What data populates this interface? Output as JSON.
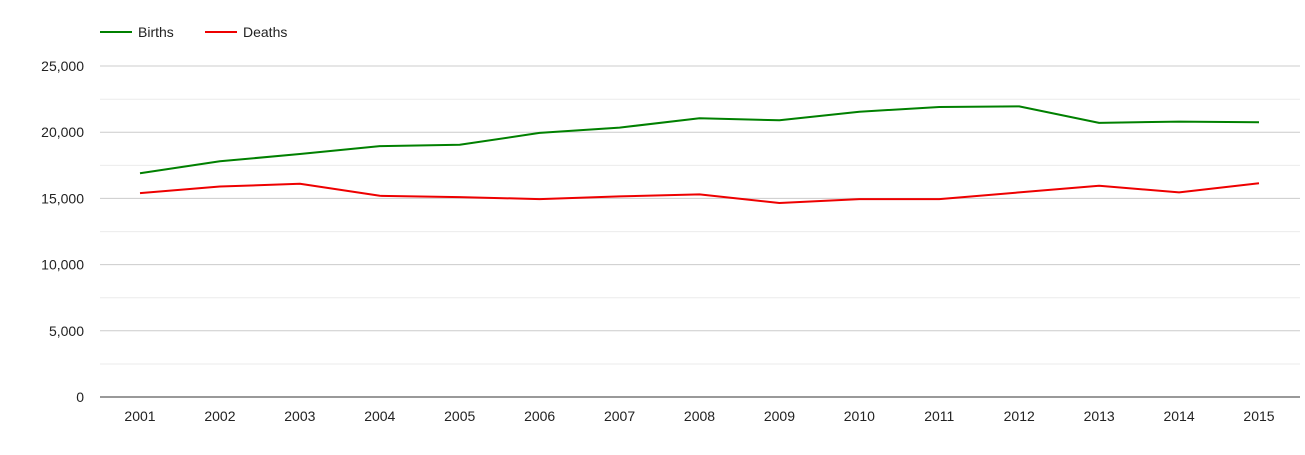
{
  "chart_data": {
    "type": "line",
    "x": [
      "2001",
      "2002",
      "2003",
      "2004",
      "2005",
      "2006",
      "2007",
      "2008",
      "2009",
      "2010",
      "2011",
      "2012",
      "2013",
      "2014",
      "2015"
    ],
    "series": [
      {
        "name": "Births",
        "color": "#008000",
        "values": [
          16900,
          17800,
          18350,
          18950,
          19050,
          19950,
          20350,
          21050,
          20900,
          21550,
          21900,
          21950,
          20700,
          20800,
          20750
        ]
      },
      {
        "name": "Deaths",
        "color": "#ee0000",
        "values": [
          15400,
          15900,
          16100,
          15200,
          15100,
          14950,
          15150,
          15300,
          14650,
          14950,
          14950,
          15450,
          15950,
          15450,
          16150
        ]
      }
    ],
    "ylim": [
      0,
      27500
    ],
    "yticks": [
      0,
      5000,
      10000,
      15000,
      20000,
      25000
    ],
    "ytick_labels": [
      "0",
      "5,000",
      "10,000",
      "15,000",
      "20,000",
      "25,000"
    ],
    "grid": true,
    "legend": "top-left",
    "title": "",
    "xlabel": "",
    "ylabel": ""
  }
}
